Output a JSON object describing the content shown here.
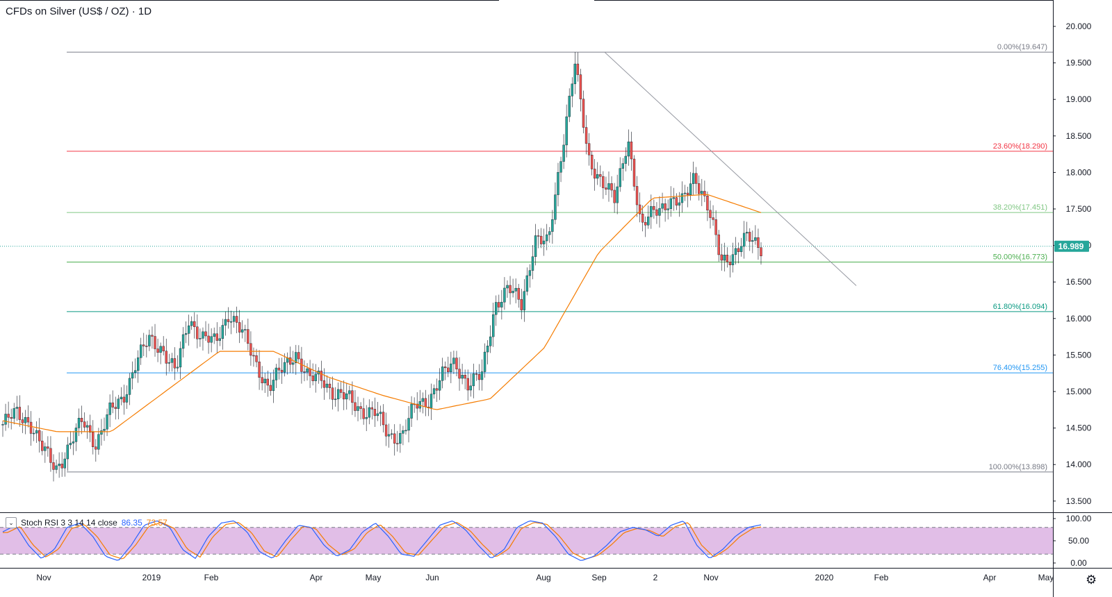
{
  "header": {
    "title": "CFDs on Silver (US$ / OZ) · 1D"
  },
  "indicator": {
    "toggle_icon": "chevron-down-icon",
    "label": "Stoch RSI 3 3 14 14 close",
    "k_value": "86.35",
    "d_value": "73.57"
  },
  "price_axis": {
    "last_price": "16.989",
    "last_price_bg": "#26a69a"
  },
  "colors": {
    "up": "#26a69a",
    "down": "#ef5350",
    "ma": "#f57c00",
    "stoch_k": "#2962ff",
    "stoch_d": "#f57c00",
    "stoch_band": "#e1bee7"
  },
  "chart_data": {
    "type": "candlestick",
    "title": "CFDs on Silver (US$ / OZ) · 1D",
    "timeframe": "1D",
    "ylim": [
      13.3,
      20.2
    ],
    "y_ticks": [
      "20.000",
      "19.500",
      "19.000",
      "18.500",
      "18.000",
      "17.500",
      "17.000",
      "16.500",
      "16.000",
      "15.500",
      "15.000",
      "14.500",
      "14.000",
      "13.500"
    ],
    "x_ticks": [
      "Nov",
      "2019",
      "Feb",
      "Apr",
      "May",
      "Jun",
      "Aug",
      "Sep",
      "2",
      "Nov",
      "2020",
      "Feb",
      "Apr",
      "May"
    ],
    "last_price": 16.989,
    "fibonacci": [
      {
        "label": "0.00%(19.647)",
        "value": 19.647,
        "color": "#787b86"
      },
      {
        "label": "23.60%(18.290)",
        "value": 18.29,
        "color": "#f23645"
      },
      {
        "label": "38.20%(17.451)",
        "value": 17.451,
        "color": "#81c784"
      },
      {
        "label": "50.00%(16.773)",
        "value": 16.773,
        "color": "#4caf50"
      },
      {
        "label": "61.80%(16.094)",
        "value": 16.094,
        "color": "#089981"
      },
      {
        "label": "76.40%(15.255)",
        "value": 15.255,
        "color": "#2196f3"
      },
      {
        "label": "100.00%(13.898)",
        "value": 13.898,
        "color": "#787b86"
      }
    ],
    "trendline": {
      "from": [
        "Sep",
        19.647
      ],
      "to": [
        "Dec",
        16.45
      ]
    },
    "close_path": [
      [
        "Oct",
        14.55
      ],
      [
        "Oct",
        14.7
      ],
      [
        "Nov",
        14.6
      ],
      [
        "Nov",
        14.2
      ],
      [
        "Nov",
        13.95
      ],
      [
        "Nov",
        14.25
      ],
      [
        "Dec",
        14.6
      ],
      [
        "Dec",
        14.3
      ],
      [
        "Dec",
        14.7
      ],
      [
        "Dec",
        14.9
      ],
      [
        "2019",
        15.4
      ],
      [
        "Jan",
        15.7
      ],
      [
        "Jan",
        15.6
      ],
      [
        "Jan",
        15.25
      ],
      [
        "Feb",
        16.0
      ],
      [
        "Feb",
        15.75
      ],
      [
        "Feb",
        15.65
      ],
      [
        "Feb",
        16.1
      ],
      [
        "Feb",
        15.8
      ],
      [
        "Mar",
        15.4
      ],
      [
        "Mar",
        15.05
      ],
      [
        "Mar",
        15.3
      ],
      [
        "Mar",
        15.55
      ],
      [
        "Apr",
        15.15
      ],
      [
        "Apr",
        15.2
      ],
      [
        "Apr",
        14.95
      ],
      [
        "May",
        14.9
      ],
      [
        "May",
        14.75
      ],
      [
        "May",
        14.7
      ],
      [
        "May",
        14.4
      ],
      [
        "Jun",
        14.4
      ],
      [
        "Jun",
        14.8
      ],
      [
        "Jun",
        14.9
      ],
      [
        "Jun",
        15.2
      ],
      [
        "Jul",
        15.4
      ],
      [
        "Jul",
        15.1
      ],
      [
        "Jul",
        15.2
      ],
      [
        "Jul",
        16.2
      ],
      [
        "Aug",
        16.4
      ],
      [
        "Aug",
        16.2
      ],
      [
        "Aug",
        17.1
      ],
      [
        "Aug",
        17.0
      ],
      [
        "Aug",
        18.3
      ],
      [
        "Sep",
        19.5
      ],
      [
        "Sep",
        18.2
      ],
      [
        "Sep",
        17.9
      ],
      [
        "Sep",
        17.6
      ],
      [
        "Sep",
        18.5
      ],
      [
        "Oct",
        17.2
      ],
      [
        "Oct",
        17.5
      ],
      [
        "Oct",
        17.6
      ],
      [
        "Oct",
        17.55
      ],
      [
        "Nov",
        18.0
      ],
      [
        "Nov",
        17.5
      ],
      [
        "Nov",
        16.8
      ],
      [
        "Nov",
        16.9
      ],
      [
        "Nov",
        17.1
      ],
      [
        "Dec",
        16.99
      ]
    ],
    "moving_average_path": [
      [
        "Oct",
        14.6
      ],
      [
        "Nov",
        14.45
      ],
      [
        "Dec",
        14.45
      ],
      [
        "Jan",
        15.0
      ],
      [
        "Feb",
        15.55
      ],
      [
        "Mar",
        15.55
      ],
      [
        "Apr",
        15.2
      ],
      [
        "May",
        14.95
      ],
      [
        "Jun",
        14.75
      ],
      [
        "Jul",
        14.9
      ],
      [
        "Aug",
        15.6
      ],
      [
        "Sep",
        16.9
      ],
      [
        "Oct",
        17.65
      ],
      [
        "Nov",
        17.7
      ],
      [
        "Dec",
        17.45
      ]
    ],
    "stoch_rsi": {
      "ylim": [
        0,
        100
      ],
      "y_ticks": [
        "100.00",
        "50.00",
        "0.00"
      ],
      "bands": [
        80,
        20
      ],
      "k_last": 86.35,
      "d_last": 73.57,
      "k": [
        70,
        85,
        40,
        10,
        30,
        80,
        90,
        60,
        15,
        5,
        40,
        85,
        95,
        80,
        30,
        10,
        60,
        90,
        95,
        70,
        25,
        10,
        50,
        85,
        80,
        40,
        15,
        30,
        70,
        90,
        60,
        20,
        15,
        50,
        85,
        95,
        75,
        40,
        10,
        30,
        80,
        95,
        90,
        60,
        20,
        5,
        15,
        40,
        70,
        80,
        75,
        60,
        85,
        95,
        40,
        10,
        30,
        60,
        80,
        86
      ]
    }
  }
}
